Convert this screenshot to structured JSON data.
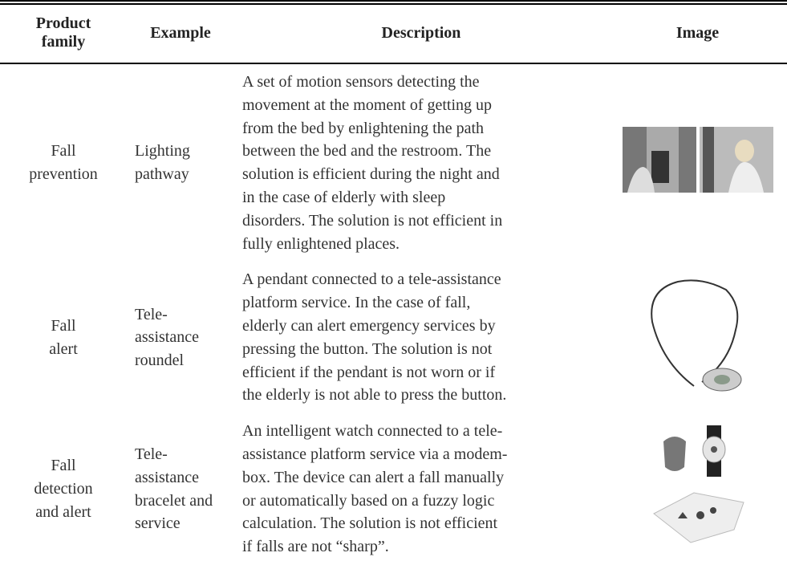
{
  "table": {
    "columns": [
      [
        "Product",
        "family"
      ],
      [
        "Example"
      ],
      [
        "Description"
      ],
      [
        "Image"
      ]
    ],
    "rows": [
      {
        "family": [
          "Fall",
          "prevention"
        ],
        "example": [
          "Lighting",
          "pathway"
        ],
        "description": [
          "A set of motion sensors detecting the",
          "movement at the moment of getting up",
          "from the bed by enlightening the path",
          "between the bed and the restroom. The",
          "solution is efficient during the night and",
          "in the case of elderly with sleep",
          "disorders. The solution is not efficient in",
          "fully enlightened places."
        ]
      },
      {
        "family": [
          "Fall",
          "alert"
        ],
        "example": [
          "Tele-",
          "assistance",
          "roundel"
        ],
        "description": [
          "A pendant connected to a tele-assistance",
          "platform service. In the case of fall,",
          "elderly can alert emergency services by",
          "pressing the button. The solution is not",
          "efficient if the pendant is not worn or if",
          "the elderly is not able to press the button."
        ]
      },
      {
        "family": [
          "Fall",
          "detection",
          "and alert"
        ],
        "example": [
          "Tele-",
          "assistance",
          "bracelet and",
          "service"
        ],
        "description": [
          "An intelligent watch connected to a tele-",
          "assistance platform service via a modem-",
          "box. The device can alert a fall manually",
          "or automatically based on a fuzzy logic",
          "calculation. The solution is not efficient",
          "if falls are not “sharp”."
        ]
      }
    ]
  }
}
